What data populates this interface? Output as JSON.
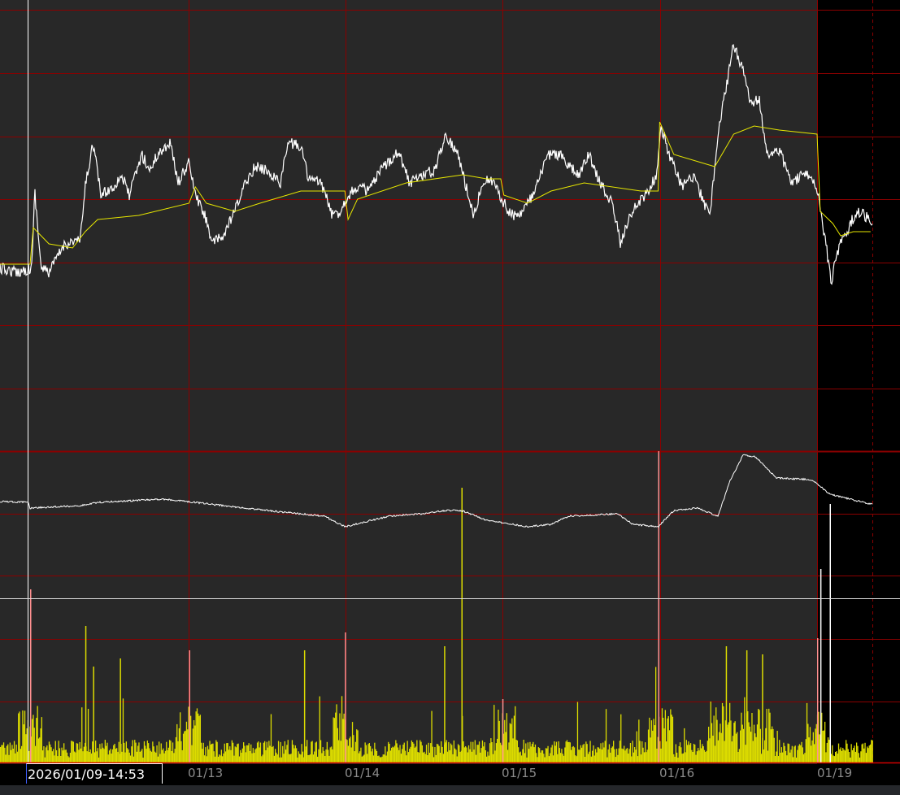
{
  "cursor": {
    "datetime_label": "2026/01/09-14:53"
  },
  "colors": {
    "plot_bg": "#282828",
    "future_bg": "#000000",
    "grid": "#8b0000",
    "day_separator": "#ff9090",
    "price": "#ffffff",
    "moving_average": "#e6e600",
    "volume": "#dddd00",
    "cursor": "#ffffff"
  },
  "chart_data": [
    {
      "type": "line",
      "panel": "price",
      "grid": true,
      "x_tick_labels": [
        "01/13",
        "01/14",
        "01/15",
        "01/16",
        "01/19"
      ],
      "x_unit": "trading sessions after cursor",
      "series": [
        {
          "role": "price",
          "points": [
            [
              -0.19,
              45
            ],
            [
              -0.09,
              44
            ],
            [
              0.01,
              45
            ],
            [
              0.03,
              64
            ],
            [
              0.07,
              45
            ],
            [
              0.12,
              44
            ],
            [
              0.22,
              51
            ],
            [
              0.32,
              52
            ],
            [
              0.35,
              65
            ],
            [
              0.4,
              76
            ],
            [
              0.45,
              63
            ],
            [
              0.53,
              65
            ],
            [
              0.58,
              68
            ],
            [
              0.63,
              63
            ],
            [
              0.71,
              73
            ],
            [
              0.76,
              69
            ],
            [
              0.81,
              73
            ],
            [
              0.89,
              76
            ],
            [
              0.94,
              66
            ],
            [
              1.01,
              71
            ],
            [
              1.05,
              63
            ],
            [
              1.12,
              57
            ],
            [
              1.16,
              51
            ],
            [
              1.23,
              53
            ],
            [
              1.3,
              59
            ],
            [
              1.38,
              67
            ],
            [
              1.43,
              70
            ],
            [
              1.51,
              69
            ],
            [
              1.59,
              66
            ],
            [
              1.64,
              76
            ],
            [
              1.72,
              75
            ],
            [
              1.77,
              67
            ],
            [
              1.85,
              66
            ],
            [
              1.92,
              58
            ],
            [
              1.97,
              59
            ],
            [
              2.02,
              63
            ],
            [
              2.08,
              65
            ],
            [
              2.15,
              64
            ],
            [
              2.23,
              69
            ],
            [
              2.34,
              74
            ],
            [
              2.41,
              66
            ],
            [
              2.49,
              68
            ],
            [
              2.57,
              69
            ],
            [
              2.64,
              78
            ],
            [
              2.72,
              73
            ],
            [
              2.77,
              65
            ],
            [
              2.82,
              58
            ],
            [
              2.88,
              67
            ],
            [
              2.95,
              66
            ],
            [
              3.01,
              61
            ],
            [
              3.06,
              58
            ],
            [
              3.13,
              59
            ],
            [
              3.21,
              64
            ],
            [
              3.29,
              73
            ],
            [
              3.37,
              73
            ],
            [
              3.42,
              70
            ],
            [
              3.49,
              68
            ],
            [
              3.55,
              73
            ],
            [
              3.62,
              66
            ],
            [
              3.7,
              61
            ],
            [
              3.75,
              51
            ],
            [
              3.8,
              57
            ],
            [
              3.88,
              62
            ],
            [
              3.93,
              64
            ],
            [
              3.98,
              68
            ],
            [
              4.01,
              80
            ],
            [
              4.06,
              73
            ],
            [
              4.14,
              65
            ],
            [
              4.22,
              68
            ],
            [
              4.27,
              62
            ],
            [
              4.32,
              58
            ],
            [
              4.37,
              78
            ],
            [
              4.42,
              89
            ],
            [
              4.47,
              100
            ],
            [
              4.53,
              94
            ],
            [
              4.58,
              85
            ],
            [
              4.63,
              87
            ],
            [
              4.68,
              73
            ],
            [
              4.76,
              74
            ],
            [
              4.84,
              66
            ],
            [
              4.91,
              68
            ],
            [
              4.98,
              67
            ],
            [
              5.01,
              63
            ],
            [
              5.04,
              55
            ],
            [
              5.09,
              42
            ],
            [
              5.15,
              52
            ],
            [
              5.2,
              55
            ],
            [
              5.25,
              59
            ],
            [
              5.3,
              58
            ],
            [
              5.34,
              57
            ]
          ]
        },
        {
          "role": "moving-average",
          "points": [
            [
              -0.19,
              46
            ],
            [
              0.0,
              46
            ],
            [
              0.02,
              55
            ],
            [
              0.12,
              51
            ],
            [
              0.27,
              50
            ],
            [
              0.35,
              54
            ],
            [
              0.43,
              57
            ],
            [
              0.69,
              58
            ],
            [
              1.01,
              61
            ],
            [
              1.05,
              65
            ],
            [
              1.12,
              61
            ],
            [
              1.3,
              59
            ],
            [
              1.46,
              61
            ],
            [
              1.72,
              64
            ],
            [
              1.87,
              64
            ],
            [
              2.0,
              64
            ],
            [
              2.02,
              57
            ],
            [
              2.08,
              62
            ],
            [
              2.39,
              66
            ],
            [
              2.75,
              68
            ],
            [
              2.9,
              67
            ],
            [
              2.99,
              67
            ],
            [
              3.01,
              63
            ],
            [
              3.16,
              61
            ],
            [
              3.31,
              64
            ],
            [
              3.52,
              66
            ],
            [
              3.88,
              64
            ],
            [
              3.99,
              64
            ],
            [
              4.0,
              81
            ],
            [
              4.09,
              73
            ],
            [
              4.35,
              70
            ],
            [
              4.47,
              78
            ],
            [
              4.6,
              80
            ],
            [
              4.76,
              79
            ],
            [
              5.0,
              78
            ],
            [
              5.02,
              59
            ],
            [
              5.1,
              56
            ],
            [
              5.15,
              53
            ],
            [
              5.23,
              54
            ],
            [
              5.34,
              54
            ]
          ]
        }
      ]
    },
    {
      "type": "line",
      "panel": "indicator",
      "series": [
        {
          "role": "indicator",
          "points": [
            [
              -0.19,
              83
            ],
            [
              -0.01,
              82
            ],
            [
              0.0,
              75
            ],
            [
              0.32,
              78
            ],
            [
              0.43,
              82
            ],
            [
              0.84,
              86
            ],
            [
              1.0,
              83
            ],
            [
              1.36,
              75
            ],
            [
              1.61,
              70
            ],
            [
              1.87,
              65
            ],
            [
              2.0,
              52
            ],
            [
              2.28,
              65
            ],
            [
              2.49,
              68
            ],
            [
              2.64,
              72
            ],
            [
              2.74,
              72
            ],
            [
              2.9,
              60
            ],
            [
              3.16,
              52
            ],
            [
              3.31,
              55
            ],
            [
              3.42,
              65
            ],
            [
              3.73,
              68
            ],
            [
              3.83,
              55
            ],
            [
              3.99,
              52
            ],
            [
              4.09,
              72
            ],
            [
              4.24,
              75
            ],
            [
              4.37,
              65
            ],
            [
              4.45,
              110
            ],
            [
              4.53,
              140
            ],
            [
              4.61,
              138
            ],
            [
              4.74,
              112
            ],
            [
              4.96,
              110
            ],
            [
              5.0,
              105
            ],
            [
              5.08,
              92
            ],
            [
              5.34,
              80
            ]
          ]
        }
      ]
    },
    {
      "type": "bar",
      "panel": "volume",
      "spikes": [
        [
          0.0,
          213,
          "sep"
        ],
        [
          0.35,
          168
        ],
        [
          0.4,
          118
        ],
        [
          0.57,
          128
        ],
        [
          1.01,
          138,
          "sep"
        ],
        [
          1.74,
          138
        ],
        [
          2.0,
          160,
          "sep"
        ],
        [
          2.63,
          143
        ],
        [
          2.74,
          338
        ],
        [
          3.0,
          78,
          "sep"
        ],
        [
          3.99,
          383,
          "sep"
        ],
        [
          4.42,
          143
        ],
        [
          4.55,
          138
        ],
        [
          4.65,
          133
        ],
        [
          5.0,
          153,
          "sep"
        ],
        [
          5.02,
          238,
          "white"
        ],
        [
          5.08,
          318,
          "white"
        ]
      ]
    }
  ]
}
